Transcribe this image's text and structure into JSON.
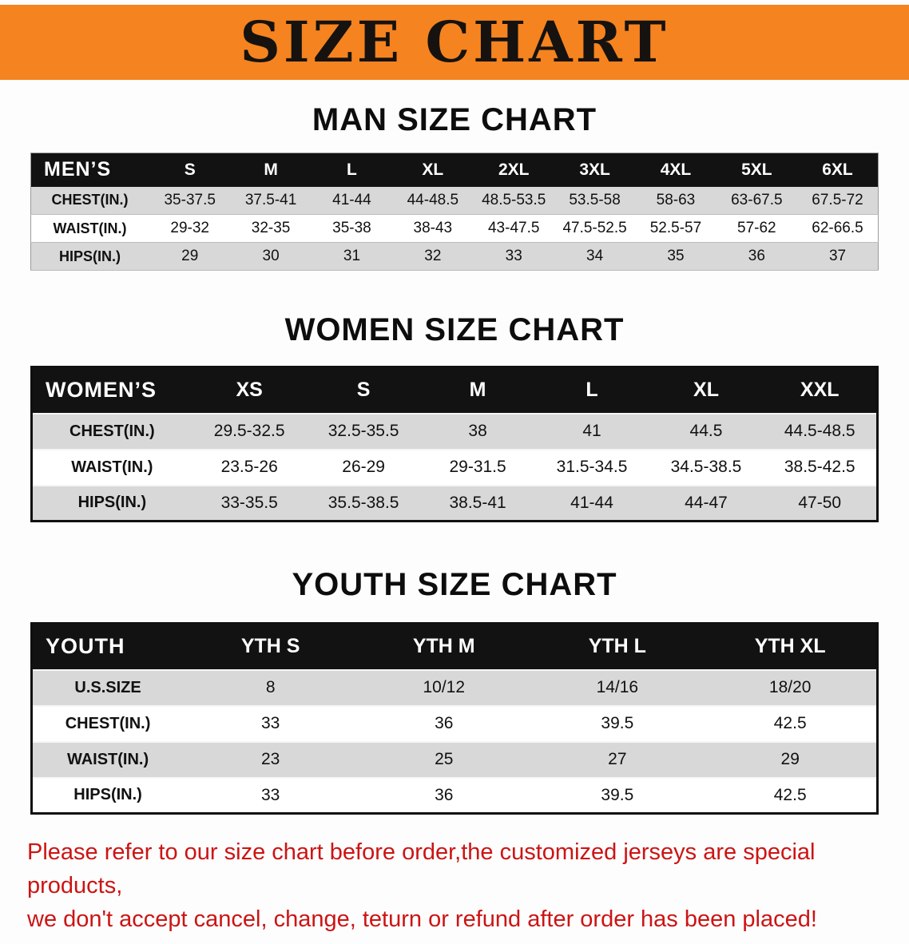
{
  "banner": {
    "title": "SIZE CHART"
  },
  "colors": {
    "banner_bg": "#f5831f",
    "table_header_bg": "#121212",
    "row_alt_bg": "#d8d8d8",
    "note_color": "#cc1414"
  },
  "sections": [
    {
      "heading": "MAN SIZE CHART",
      "table": {
        "header": [
          "MEN’S",
          "S",
          "M",
          "L",
          "XL",
          "2XL",
          "3XL",
          "4XL",
          "5XL",
          "6XL"
        ],
        "rows": [
          [
            "CHEST(IN.)",
            "35-37.5",
            "37.5-41",
            "41-44",
            "44-48.5",
            "48.5-53.5",
            "53.5-58",
            "58-63",
            "63-67.5",
            "67.5-72"
          ],
          [
            "WAIST(IN.)",
            "29-32",
            "32-35",
            "35-38",
            "38-43",
            "43-47.5",
            "47.5-52.5",
            "52.5-57",
            "57-62",
            "62-66.5"
          ],
          [
            "HIPS(IN.)",
            "29",
            "30",
            "31",
            "32",
            "33",
            "34",
            "35",
            "36",
            "37"
          ]
        ]
      }
    },
    {
      "heading": "WOMEN SIZE CHART",
      "table": {
        "header": [
          "WOMEN’S",
          "XS",
          "S",
          "M",
          "L",
          "XL",
          "XXL"
        ],
        "rows": [
          [
            "CHEST(IN.)",
            "29.5-32.5",
            "32.5-35.5",
            "38",
            "41",
            "44.5",
            "44.5-48.5"
          ],
          [
            "WAIST(IN.)",
            "23.5-26",
            "26-29",
            "29-31.5",
            "31.5-34.5",
            "34.5-38.5",
            "38.5-42.5"
          ],
          [
            "HIPS(IN.)",
            "33-35.5",
            "35.5-38.5",
            "38.5-41",
            "41-44",
            "44-47",
            "47-50"
          ]
        ]
      }
    },
    {
      "heading": "YOUTH SIZE CHART",
      "table": {
        "header": [
          "YOUTH",
          "YTH S",
          "YTH M",
          "YTH L",
          "YTH XL"
        ],
        "rows": [
          [
            "U.S.SIZE",
            "8",
            "10/12",
            "14/16",
            "18/20"
          ],
          [
            "CHEST(IN.)",
            "33",
            "36",
            "39.5",
            "42.5"
          ],
          [
            "WAIST(IN.)",
            "23",
            "25",
            "27",
            "29"
          ],
          [
            "HIPS(IN.)",
            "33",
            "36",
            "39.5",
            "42.5"
          ]
        ]
      }
    }
  ],
  "note": {
    "line1": "Please refer to our size chart before order,the customized jerseys are special products,",
    "line2": "we don't accept cancel, change, teturn or refund after order has been placed!"
  }
}
